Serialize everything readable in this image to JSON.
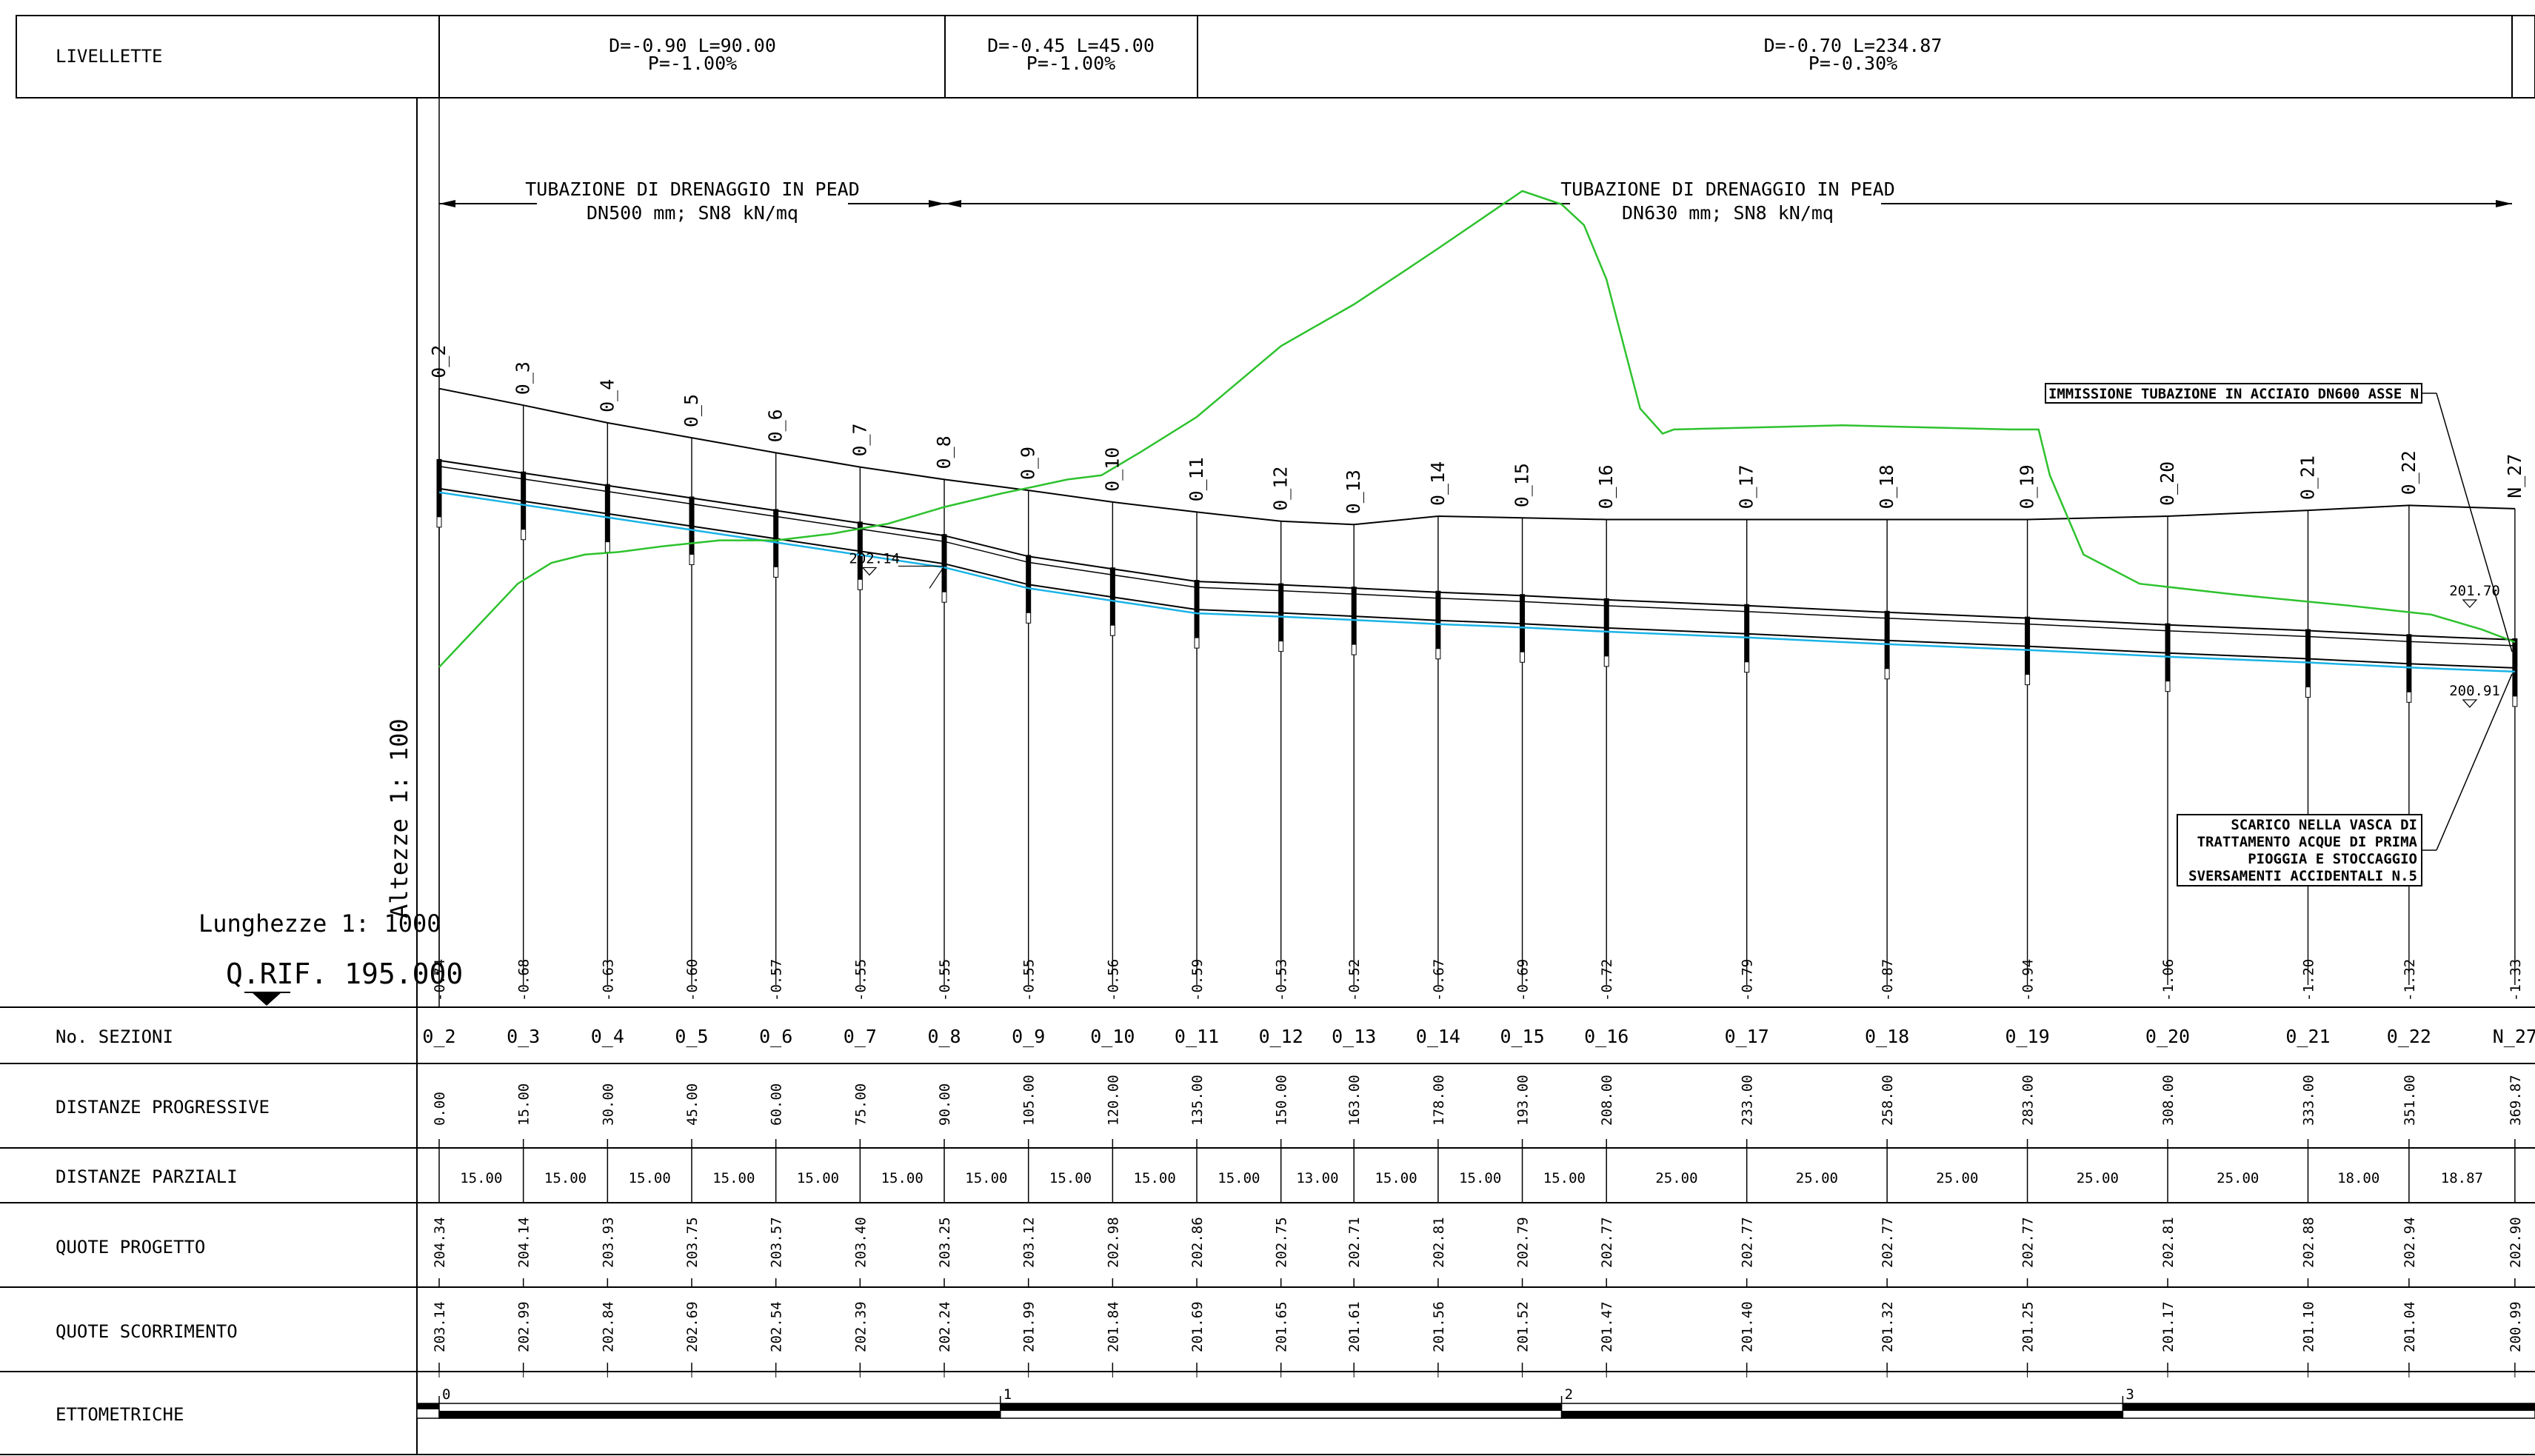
{
  "livellette": {
    "title": "LIVELLETTE",
    "items": [
      {
        "line1": "D=-0.90 L=90.00",
        "line2": "P=-1.00%"
      },
      {
        "line1": "D=-0.45 L=45.00",
        "line2": "P=-1.00%"
      },
      {
        "line1": "D=-0.70 L=234.87",
        "line2": "P=-0.30%"
      }
    ]
  },
  "pipes": [
    {
      "line1": "TUBAZIONE DI DRENAGGIO IN PEAD",
      "line2": "DN500 mm; SN8 kN/mq"
    },
    {
      "line1": "TUBAZIONE DI DRENAGGIO IN PEAD",
      "line2": "DN630 mm; SN8 kN/mq"
    }
  ],
  "scales": {
    "heights": "Altezze 1: 100",
    "lengths": "Lunghezze 1: 1000",
    "qrif": "Q.RIF. 195.000"
  },
  "notes": {
    "immissione": "IMMISSIONE TUBAZIONE IN ACCIAIO DN600 ASSE N",
    "scarico": [
      "SCARICO NELLA VASCA DI",
      "TRATTAMENTO ACQUE DI PRIMA",
      "PIOGGIA E STOCCAGGIO",
      "SVERSAMENTI ACCIDENTALI N.5"
    ]
  },
  "markers": [
    {
      "label": "202.14",
      "progressive": 90,
      "elev": 202.14
    },
    {
      "label": "201.70",
      "progressive": 369.87,
      "elev": 201.7
    },
    {
      "label": "200.91",
      "progressive": 369.87,
      "elev": 200.91
    }
  ],
  "table": {
    "rows": {
      "sections": "No. SEZIONI",
      "progressive": "DISTANZE PROGRESSIVE",
      "partial": "DISTANZE PARZIALI",
      "design": "QUOTE PROGETTO",
      "flow": "QUOTE SCORRIMENTO",
      "ettometriche": "ETTOMETRICHE"
    },
    "ettometriche_labels": [
      "0",
      "1",
      "2",
      "3"
    ]
  },
  "chart_data": {
    "type": "line",
    "x_label": "DISTANZE PROGRESSIVE",
    "sections": [
      "0_2",
      "0_3",
      "0_4",
      "0_5",
      "0_6",
      "0_7",
      "0_8",
      "0_9",
      "0_10",
      "0_11",
      "0_12",
      "0_13",
      "0_14",
      "0_15",
      "0_16",
      "0_17",
      "0_18",
      "0_19",
      "0_20",
      "0_21",
      "0_22",
      "N_27"
    ],
    "progressive": [
      "0.00",
      "15.00",
      "30.00",
      "45.00",
      "60.00",
      "75.00",
      "90.00",
      "105.00",
      "120.00",
      "135.00",
      "150.00",
      "163.00",
      "178.00",
      "193.00",
      "208.00",
      "233.00",
      "258.00",
      "283.00",
      "308.00",
      "333.00",
      "351.00",
      "369.87"
    ],
    "partial": [
      "15.00",
      "15.00",
      "15.00",
      "15.00",
      "15.00",
      "15.00",
      "15.00",
      "15.00",
      "15.00",
      "15.00",
      "13.00",
      "15.00",
      "15.00",
      "15.00",
      "25.00",
      "25.00",
      "25.00",
      "25.00",
      "25.00",
      "18.00",
      "18.87"
    ],
    "design": [
      "204.34",
      "204.14",
      "203.93",
      "203.75",
      "203.57",
      "203.40",
      "203.25",
      "203.12",
      "202.98",
      "202.86",
      "202.75",
      "202.71",
      "202.81",
      "202.79",
      "202.77",
      "202.77",
      "202.77",
      "202.77",
      "202.81",
      "202.88",
      "202.94",
      "202.90"
    ],
    "flow": [
      "203.14",
      "202.99",
      "202.84",
      "202.69",
      "202.54",
      "202.39",
      "202.24",
      "201.99",
      "201.84",
      "201.69",
      "201.65",
      "201.61",
      "201.56",
      "201.52",
      "201.47",
      "201.40",
      "201.32",
      "201.25",
      "201.17",
      "201.10",
      "201.04",
      "200.99"
    ],
    "depth": [
      "-0.74",
      "-0.68",
      "-0.63",
      "-0.60",
      "-0.57",
      "-0.55",
      "-0.55",
      "-0.55",
      "-0.56",
      "-0.59",
      "-0.53",
      "-0.52",
      "-0.67",
      "-0.69",
      "-0.72",
      "-0.79",
      "-0.87",
      "-0.94",
      "-1.06",
      "-1.20",
      "-1.32",
      "-1.33"
    ],
    "terrain": [
      [
        0,
        201.0
      ],
      [
        7,
        201.5
      ],
      [
        14,
        202.0
      ],
      [
        20,
        202.25
      ],
      [
        26,
        202.35
      ],
      [
        32,
        202.38
      ],
      [
        40,
        202.45
      ],
      [
        50,
        202.52
      ],
      [
        60,
        202.52
      ],
      [
        70,
        202.6
      ],
      [
        80,
        202.72
      ],
      [
        90,
        202.92
      ],
      [
        100,
        203.08
      ],
      [
        105,
        203.15
      ],
      [
        112,
        203.25
      ],
      [
        118,
        203.3
      ],
      [
        125,
        203.58
      ],
      [
        135,
        204.0
      ],
      [
        150,
        204.85
      ],
      [
        163,
        205.35
      ],
      [
        172,
        205.75
      ],
      [
        178,
        206.02
      ],
      [
        193,
        206.71
      ],
      [
        200,
        206.55
      ],
      [
        204,
        206.3
      ],
      [
        208,
        205.65
      ],
      [
        214,
        204.1
      ],
      [
        218,
        203.8
      ],
      [
        220,
        203.85
      ],
      [
        250,
        203.9
      ],
      [
        280,
        203.85
      ],
      [
        285,
        203.85
      ],
      [
        287,
        203.3
      ],
      [
        293,
        202.35
      ],
      [
        303,
        202.0
      ],
      [
        320,
        201.87
      ],
      [
        340,
        201.74
      ],
      [
        355,
        201.63
      ],
      [
        364,
        201.45
      ],
      [
        369.87,
        201.3
      ]
    ],
    "ylim": [
      195,
      208
    ]
  }
}
